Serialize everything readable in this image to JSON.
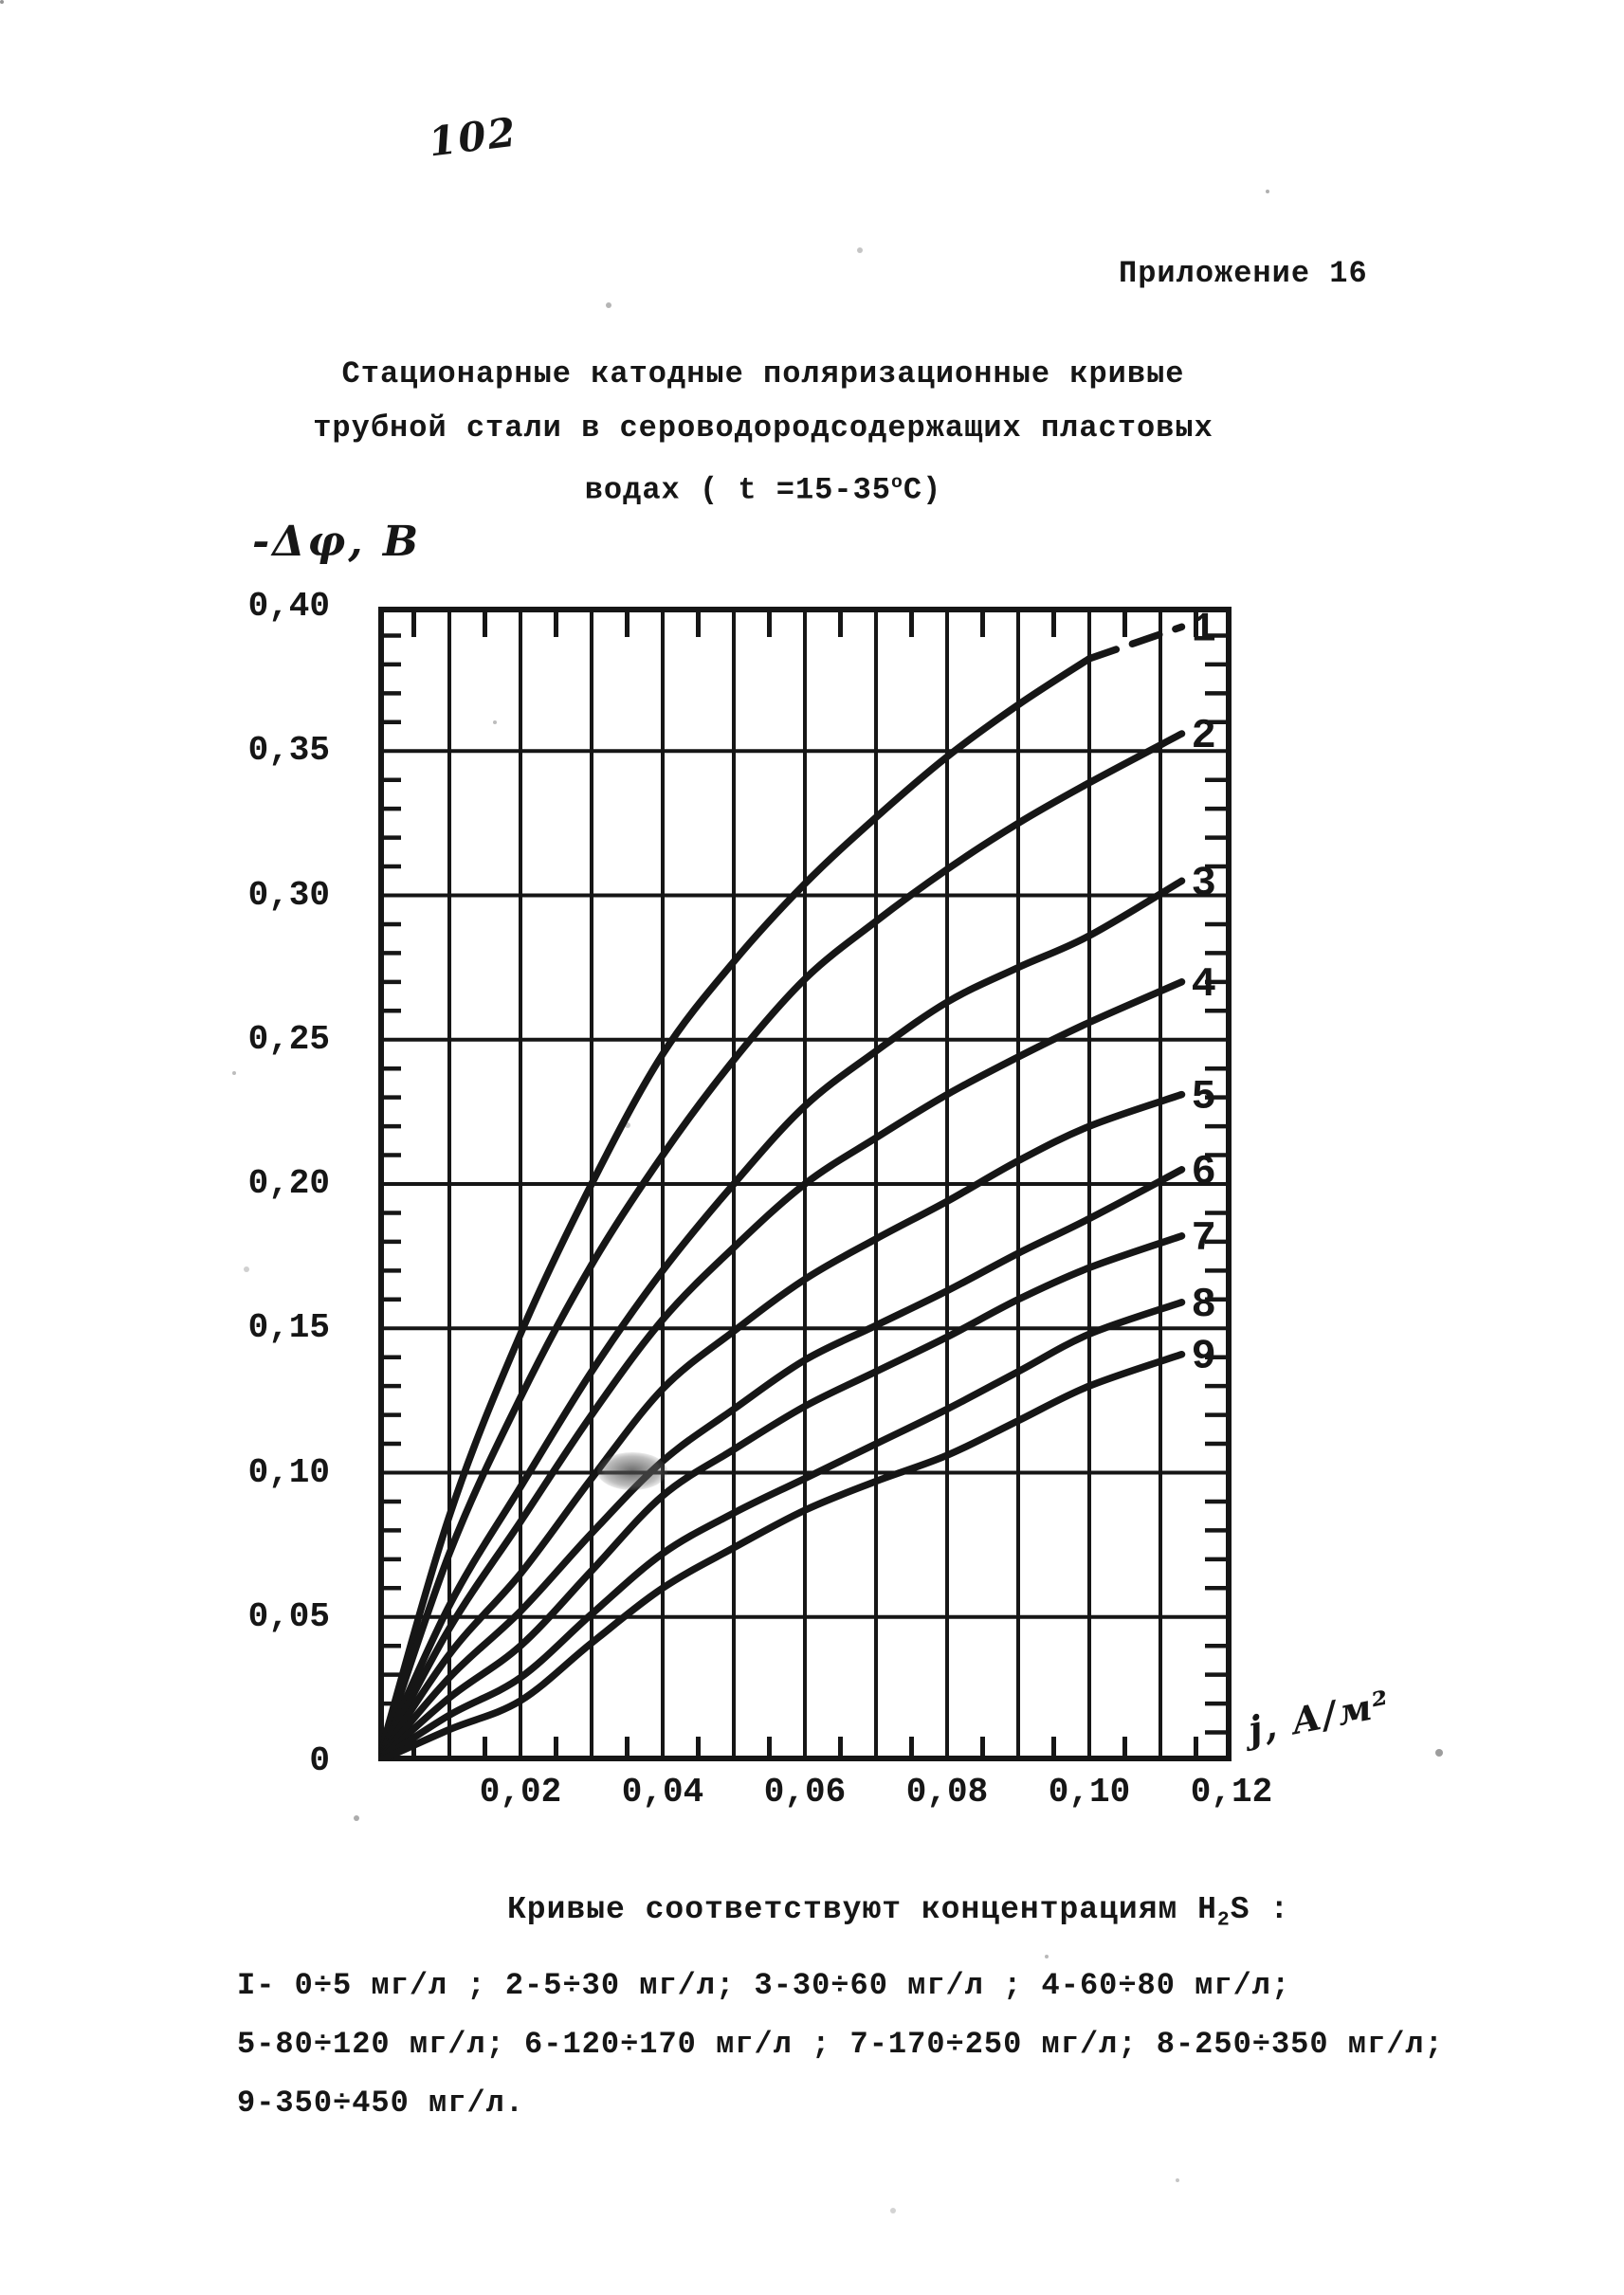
{
  "page": {
    "page_number": "102",
    "appendix_label": "Приложение 16",
    "title_line1": "Стационарные катодные поляризационные кривые",
    "title_line2": "трубной стали в сероводородсодержащих пластовых",
    "title_line3_prefix": "водах ( t =15-35",
    "title_line3_sup": "о",
    "title_line3_suffix": "С)"
  },
  "chart_data": {
    "type": "line",
    "title": "Стационарные катодные поляризационные кривые трубной стали в сероводородсодержащих пластовых водах (t = 15-35 °С)",
    "xlabel": "j, А/м²",
    "ylabel": "-Δφ, В",
    "xlim": [
      0,
      0.12
    ],
    "ylim": [
      0,
      0.4
    ],
    "grid": {
      "x_major_step": 0.01,
      "y_major_step": 0.05,
      "x_minor_step": 0.005,
      "y_minor_step": 0.01,
      "grid_on": true
    },
    "legend_position": "curve numbers 1-9 at right edge of plot",
    "ink_color": "#161616",
    "x_ticks": [
      {
        "label": "0,02",
        "value": 0.02
      },
      {
        "label": "0,04",
        "value": 0.04
      },
      {
        "label": "0,06",
        "value": 0.06
      },
      {
        "label": "0,08",
        "value": 0.08
      },
      {
        "label": "0,10",
        "value": 0.1
      },
      {
        "label": "0,12",
        "value": 0.12
      }
    ],
    "y_ticks": [
      {
        "label": "0",
        "value": 0.0
      },
      {
        "label": "0,05",
        "value": 0.05
      },
      {
        "label": "0,10",
        "value": 0.1
      },
      {
        "label": "0,15",
        "value": 0.15
      },
      {
        "label": "0,20",
        "value": 0.2
      },
      {
        "label": "0,25",
        "value": 0.25
      },
      {
        "label": "0,30",
        "value": 0.3
      },
      {
        "label": "0,35",
        "value": 0.35
      },
      {
        "label": "0,40",
        "value": 0.4
      }
    ],
    "series": [
      {
        "label": "1",
        "h2s_range": "0÷5 мг/л",
        "dash_from": 0.1,
        "points": [
          [
            0,
            0
          ],
          [
            0.01,
            0.085
          ],
          [
            0.02,
            0.148
          ],
          [
            0.03,
            0.2
          ],
          [
            0.04,
            0.245
          ],
          [
            0.05,
            0.277
          ],
          [
            0.06,
            0.304
          ],
          [
            0.07,
            0.327
          ],
          [
            0.08,
            0.348
          ],
          [
            0.09,
            0.366
          ],
          [
            0.1,
            0.382
          ],
          [
            0.113,
            0.393
          ]
        ]
      },
      {
        "label": "2",
        "h2s_range": "5÷30 мг/л",
        "points": [
          [
            0,
            0
          ],
          [
            0.01,
            0.072
          ],
          [
            0.02,
            0.126
          ],
          [
            0.03,
            0.172
          ],
          [
            0.04,
            0.21
          ],
          [
            0.05,
            0.243
          ],
          [
            0.06,
            0.271
          ],
          [
            0.07,
            0.291
          ],
          [
            0.08,
            0.309
          ],
          [
            0.09,
            0.325
          ],
          [
            0.1,
            0.339
          ],
          [
            0.113,
            0.356
          ]
        ]
      },
      {
        "label": "3",
        "h2s_range": "30÷60 мг/л",
        "points": [
          [
            0,
            0
          ],
          [
            0.01,
            0.054
          ],
          [
            0.02,
            0.095
          ],
          [
            0.03,
            0.135
          ],
          [
            0.04,
            0.17
          ],
          [
            0.05,
            0.2
          ],
          [
            0.06,
            0.227
          ],
          [
            0.07,
            0.246
          ],
          [
            0.08,
            0.263
          ],
          [
            0.09,
            0.275
          ],
          [
            0.1,
            0.286
          ],
          [
            0.113,
            0.305
          ]
        ]
      },
      {
        "label": "4",
        "h2s_range": "60÷80 мг/л",
        "points": [
          [
            0,
            0
          ],
          [
            0.01,
            0.046
          ],
          [
            0.02,
            0.083
          ],
          [
            0.03,
            0.12
          ],
          [
            0.04,
            0.153
          ],
          [
            0.05,
            0.178
          ],
          [
            0.06,
            0.2
          ],
          [
            0.07,
            0.216
          ],
          [
            0.08,
            0.231
          ],
          [
            0.09,
            0.244
          ],
          [
            0.1,
            0.256
          ],
          [
            0.113,
            0.27
          ]
        ]
      },
      {
        "label": "5",
        "h2s_range": "80÷120 мг/л",
        "points": [
          [
            0,
            0
          ],
          [
            0.01,
            0.037
          ],
          [
            0.02,
            0.065
          ],
          [
            0.03,
            0.098
          ],
          [
            0.04,
            0.129
          ],
          [
            0.05,
            0.149
          ],
          [
            0.06,
            0.167
          ],
          [
            0.07,
            0.181
          ],
          [
            0.08,
            0.194
          ],
          [
            0.09,
            0.208
          ],
          [
            0.1,
            0.22
          ],
          [
            0.113,
            0.231
          ]
        ]
      },
      {
        "label": "6",
        "h2s_range": "120÷170 мг/л",
        "points": [
          [
            0,
            0
          ],
          [
            0.01,
            0.029
          ],
          [
            0.02,
            0.052
          ],
          [
            0.03,
            0.079
          ],
          [
            0.04,
            0.104
          ],
          [
            0.05,
            0.122
          ],
          [
            0.06,
            0.139
          ],
          [
            0.07,
            0.151
          ],
          [
            0.08,
            0.163
          ],
          [
            0.09,
            0.176
          ],
          [
            0.1,
            0.188
          ],
          [
            0.113,
            0.205
          ]
        ]
      },
      {
        "label": "7",
        "h2s_range": "170÷250 мг/л",
        "points": [
          [
            0,
            0
          ],
          [
            0.01,
            0.022
          ],
          [
            0.02,
            0.04
          ],
          [
            0.03,
            0.066
          ],
          [
            0.04,
            0.092
          ],
          [
            0.05,
            0.108
          ],
          [
            0.06,
            0.123
          ],
          [
            0.07,
            0.135
          ],
          [
            0.08,
            0.147
          ],
          [
            0.09,
            0.16
          ],
          [
            0.1,
            0.171
          ],
          [
            0.113,
            0.182
          ]
        ]
      },
      {
        "label": "8",
        "h2s_range": "250÷350 мг/л",
        "points": [
          [
            0,
            0
          ],
          [
            0.01,
            0.016
          ],
          [
            0.02,
            0.029
          ],
          [
            0.03,
            0.051
          ],
          [
            0.04,
            0.072
          ],
          [
            0.05,
            0.086
          ],
          [
            0.06,
            0.098
          ],
          [
            0.07,
            0.11
          ],
          [
            0.08,
            0.122
          ],
          [
            0.09,
            0.135
          ],
          [
            0.1,
            0.148
          ],
          [
            0.113,
            0.159
          ]
        ]
      },
      {
        "label": "9",
        "h2s_range": "350÷450 мг/л",
        "points": [
          [
            0,
            0
          ],
          [
            0.01,
            0.011
          ],
          [
            0.02,
            0.021
          ],
          [
            0.03,
            0.041
          ],
          [
            0.04,
            0.06
          ],
          [
            0.05,
            0.074
          ],
          [
            0.06,
            0.087
          ],
          [
            0.07,
            0.097
          ],
          [
            0.08,
            0.106
          ],
          [
            0.09,
            0.118
          ],
          [
            0.1,
            0.13
          ],
          [
            0.113,
            0.141
          ]
        ]
      }
    ]
  },
  "legend": {
    "heading_prefix": "Кривые соответствуют концентрациям Н",
    "heading_sub": "2",
    "heading_suffix": "S :",
    "line1": "I- 0÷5 мг/л ; 2-5÷30 мг/л; 3-30÷60 мг/л ; 4-60÷80 мг/л;",
    "line2": "5-80÷120 мг/л; 6-120÷170 мг/л ; 7-170÷250 мг/л; 8-250÷350 мг/л;",
    "line3": "9-350÷450 мг/л."
  }
}
